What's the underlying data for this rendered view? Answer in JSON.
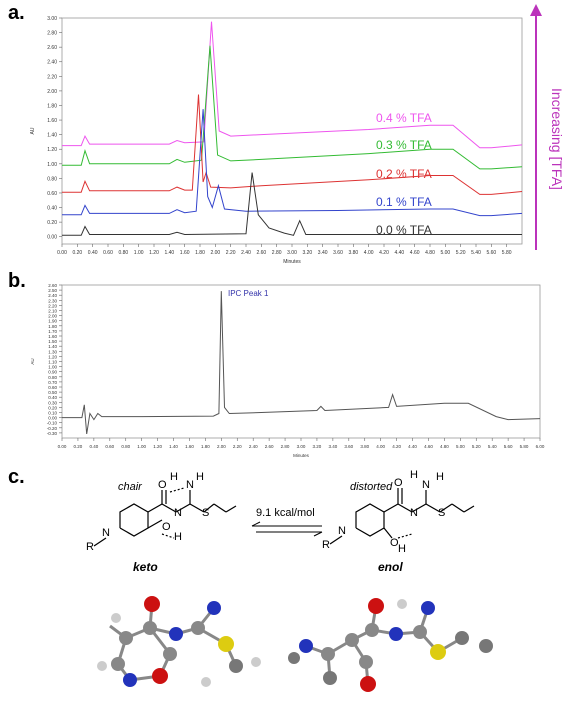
{
  "panels": {
    "a": "a.",
    "b": "b.",
    "c": "c."
  },
  "chart_data": [
    {
      "type": "line",
      "xlabel": "Minutes",
      "ylabel": "AU",
      "xlim": [
        0.0,
        6.0
      ],
      "ylim": [
        -0.1,
        3.0
      ],
      "x_ticks": [
        "0.00",
        "0.20",
        "0.40",
        "0.60",
        "0.80",
        "1.00",
        "1.20",
        "1.40",
        "1.60",
        "1.80",
        "2.00",
        "2.20",
        "2.40",
        "2.60",
        "2.80",
        "3.00",
        "3.20",
        "3.40",
        "3.60",
        "3.80",
        "4.00",
        "4.20",
        "4.40",
        "4.60",
        "4.80",
        "5.00",
        "5.20",
        "5.40",
        "5.60",
        "5.80"
      ],
      "y_ticks": [
        "0.00",
        "0.20",
        "0.40",
        "0.60",
        "0.80",
        "1.00",
        "1.20",
        "1.40",
        "1.60",
        "1.80",
        "2.00",
        "2.20",
        "2.40",
        "2.60",
        "2.80",
        "3.00"
      ],
      "series": [
        {
          "name": "0.4 % TFA",
          "color": "#ee55ee",
          "points": [
            [
              0,
              1.25
            ],
            [
              0.25,
              1.25
            ],
            [
              0.3,
              1.38
            ],
            [
              0.36,
              1.27
            ],
            [
              1.4,
              1.27
            ],
            [
              1.5,
              1.32
            ],
            [
              1.6,
              1.29
            ],
            [
              1.85,
              1.3
            ],
            [
              1.95,
              2.95
            ],
            [
              2.05,
              1.45
            ],
            [
              2.2,
              1.38
            ],
            [
              2.6,
              1.4
            ],
            [
              4.0,
              1.47
            ],
            [
              4.8,
              1.53
            ],
            [
              5.1,
              1.53
            ],
            [
              5.45,
              1.22
            ],
            [
              5.6,
              1.22
            ],
            [
              6.0,
              1.26
            ]
          ]
        },
        {
          "name": "0.3 % TFA",
          "color": "#33bb33",
          "points": [
            [
              0,
              0.98
            ],
            [
              0.25,
              0.98
            ],
            [
              0.3,
              1.18
            ],
            [
              0.36,
              1.0
            ],
            [
              1.4,
              1.0
            ],
            [
              1.5,
              1.06
            ],
            [
              1.6,
              1.02
            ],
            [
              1.82,
              1.05
            ],
            [
              1.93,
              2.62
            ],
            [
              2.03,
              1.12
            ],
            [
              2.2,
              1.04
            ],
            [
              2.6,
              1.06
            ],
            [
              4.0,
              1.14
            ],
            [
              4.8,
              1.2
            ],
            [
              5.1,
              1.2
            ],
            [
              5.45,
              0.93
            ],
            [
              5.6,
              0.93
            ],
            [
              6.0,
              0.96
            ]
          ]
        },
        {
          "name": "0.2 % TFA",
          "color": "#dd3333",
          "points": [
            [
              0,
              0.61
            ],
            [
              0.25,
              0.61
            ],
            [
              0.3,
              0.76
            ],
            [
              0.36,
              0.63
            ],
            [
              1.4,
              0.63
            ],
            [
              1.5,
              0.68
            ],
            [
              1.6,
              0.64
            ],
            [
              1.7,
              0.64
            ],
            [
              1.78,
              1.95
            ],
            [
              1.84,
              0.75
            ],
            [
              1.88,
              0.88
            ],
            [
              1.94,
              0.68
            ],
            [
              2.2,
              0.67
            ],
            [
              2.6,
              0.7
            ],
            [
              4.0,
              0.78
            ],
            [
              4.8,
              0.84
            ],
            [
              5.1,
              0.84
            ],
            [
              5.45,
              0.58
            ],
            [
              5.6,
              0.58
            ],
            [
              6.0,
              0.62
            ]
          ]
        },
        {
          "name": "0.1 % TFA",
          "color": "#3344cc",
          "points": [
            [
              0,
              0.3
            ],
            [
              0.25,
              0.3
            ],
            [
              0.3,
              0.43
            ],
            [
              0.36,
              0.32
            ],
            [
              1.4,
              0.32
            ],
            [
              1.5,
              0.37
            ],
            [
              1.6,
              0.33
            ],
            [
              1.75,
              0.35
            ],
            [
              1.84,
              1.75
            ],
            [
              1.9,
              0.55
            ],
            [
              1.96,
              0.4
            ],
            [
              2.04,
              0.7
            ],
            [
              2.12,
              0.38
            ],
            [
              2.4,
              0.35
            ],
            [
              3.6,
              0.36
            ],
            [
              4.8,
              0.38
            ],
            [
              5.1,
              0.38
            ],
            [
              5.45,
              0.29
            ],
            [
              5.6,
              0.29
            ],
            [
              6.0,
              0.32
            ]
          ]
        },
        {
          "name": "0.0 % TFA",
          "color": "#333333",
          "points": [
            [
              0,
              0.02
            ],
            [
              0.25,
              0.02
            ],
            [
              0.3,
              0.14
            ],
            [
              0.36,
              0.03
            ],
            [
              1.4,
              0.03
            ],
            [
              1.5,
              0.06
            ],
            [
              1.6,
              0.03
            ],
            [
              2.4,
              0.04
            ],
            [
              2.48,
              0.88
            ],
            [
              2.56,
              0.3
            ],
            [
              2.7,
              0.12
            ],
            [
              2.9,
              0.05
            ],
            [
              3.02,
              0.02
            ],
            [
              3.1,
              0.22
            ],
            [
              3.18,
              0.03
            ],
            [
              4.0,
              0.03
            ],
            [
              6.0,
              0.03
            ]
          ]
        }
      ],
      "annotation": "Increasing [TFA]",
      "annotation_color": "#bb33bb"
    },
    {
      "type": "line",
      "xlabel": "Minutes",
      "ylabel": "AU",
      "xlim": [
        0.0,
        6.0
      ],
      "ylim": [
        -0.4,
        2.6
      ],
      "x_ticks": [
        "0.00",
        "0.20",
        "0.40",
        "0.60",
        "0.80",
        "1.00",
        "1.20",
        "1.40",
        "1.60",
        "1.80",
        "2.00",
        "2.20",
        "2.40",
        "2.60",
        "2.80",
        "3.00",
        "3.20",
        "3.40",
        "3.60",
        "3.80",
        "4.00",
        "4.20",
        "4.40",
        "4.60",
        "4.80",
        "5.00",
        "5.20",
        "5.40",
        "5.60",
        "5.80",
        "6.00"
      ],
      "y_ticks": [
        "-0.30",
        "-0.20",
        "-0.10",
        "0.00",
        "0.10",
        "0.20",
        "0.30",
        "0.40",
        "0.50",
        "0.60",
        "0.70",
        "0.80",
        "0.90",
        "1.00",
        "1.10",
        "1.20",
        "1.30",
        "1.40",
        "1.50",
        "1.60",
        "1.70",
        "1.80",
        "1.90",
        "2.00",
        "2.10",
        "2.20",
        "2.30",
        "2.40",
        "2.50",
        "2.60"
      ],
      "series": [
        {
          "name": "",
          "color": "#555555",
          "points": [
            [
              0,
              0.0
            ],
            [
              0.25,
              0.0
            ],
            [
              0.28,
              0.25
            ],
            [
              0.31,
              -0.32
            ],
            [
              0.35,
              0.08
            ],
            [
              0.4,
              -0.04
            ],
            [
              0.45,
              0.08
            ],
            [
              0.5,
              0.02
            ],
            [
              1.0,
              0.02
            ],
            [
              1.9,
              0.03
            ],
            [
              1.97,
              0.08
            ],
            [
              2.0,
              2.48
            ],
            [
              2.04,
              0.2
            ],
            [
              2.1,
              0.08
            ],
            [
              2.5,
              0.1
            ],
            [
              3.2,
              0.14
            ],
            [
              3.25,
              0.22
            ],
            [
              3.3,
              0.14
            ],
            [
              4.1,
              0.2
            ],
            [
              4.15,
              0.45
            ],
            [
              4.2,
              0.22
            ],
            [
              4.8,
              0.28
            ],
            [
              5.1,
              0.28
            ],
            [
              5.45,
              0.02
            ],
            [
              5.6,
              -0.04
            ],
            [
              6.0,
              -0.02
            ]
          ]
        }
      ],
      "annotation": "IPC Peak 1"
    }
  ],
  "scheme": {
    "chair": "chair",
    "distorted": "distorted",
    "energy": "9.1 kcal/mol",
    "keto": "keto",
    "enol": "enol",
    "atoms": {
      "N": "N",
      "H": "H",
      "O": "O",
      "S": "S",
      "R": "R",
      "plus": "+"
    }
  }
}
